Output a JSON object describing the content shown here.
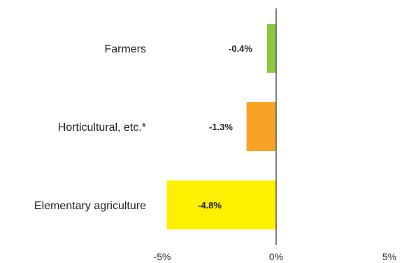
{
  "chart_data": {
    "type": "bar",
    "orientation": "horizontal",
    "categories": [
      "Farmers",
      "Horticultural, etc.*",
      "Elementary agriculture"
    ],
    "values": [
      -0.4,
      -1.3,
      -4.8
    ],
    "data_labels": [
      "-0.4%",
      "-1.3%",
      "-4.8%"
    ],
    "bar_colors": [
      "#8DC63F",
      "#F7A325",
      "#FFF000"
    ],
    "xlim": [
      -5,
      5
    ],
    "x_ticks": [
      -5,
      0,
      5
    ],
    "x_tick_labels": [
      "-5%",
      "0%",
      "5%"
    ],
    "title": "",
    "xlabel": "",
    "ylabel": "",
    "grid": false,
    "legend": false
  },
  "colors": {
    "axis": "#555555",
    "text": "#222222"
  }
}
